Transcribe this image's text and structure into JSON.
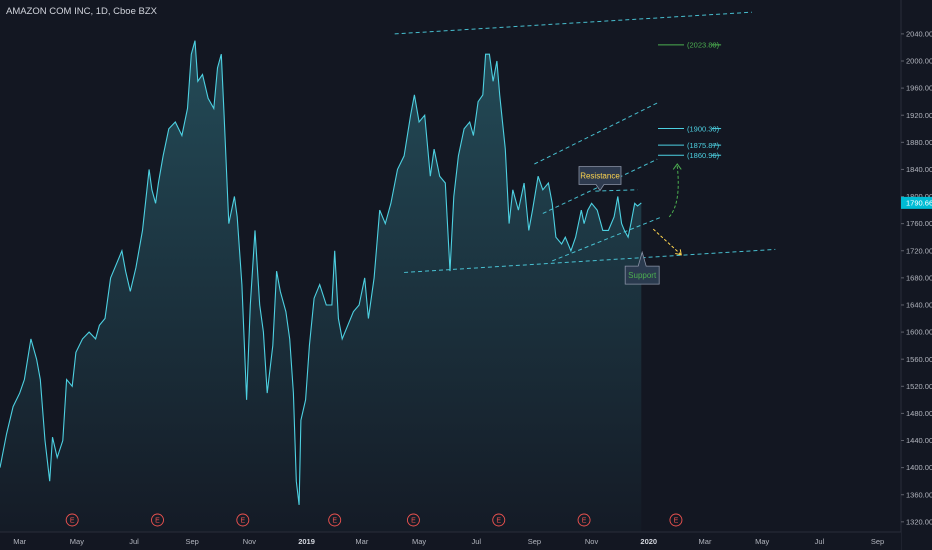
{
  "header": {
    "title": "AMAZON COM INC, 1D, Cboe BZX"
  },
  "colors": {
    "background": "#131722",
    "line": "#4dd0e1",
    "trendline": "#4dd0e1",
    "level_label": "#4dd0e1",
    "target_label": "#4caf50",
    "support_text": "#4caf50",
    "resistance_text": "#ffd54f",
    "projection_up": "#4caf50",
    "projection_down": "#ffd54f",
    "earnings": "#ef5350",
    "price_badge": "#00bcd4"
  },
  "chart_data": {
    "type": "area",
    "y_axis": {
      "range": [
        1305,
        2090
      ],
      "ticks": [
        "1320.00",
        "1360.00",
        "1400.00",
        "1440.00",
        "1480.00",
        "1520.00",
        "1560.00",
        "1600.00",
        "1640.00",
        "1680.00",
        "1720.00",
        "1760.00",
        "1800.00",
        "1840.00",
        "1880.00",
        "1920.00",
        "1960.00",
        "2000.00",
        "2040.00"
      ],
      "tick_values": [
        1320,
        1360,
        1400,
        1440,
        1480,
        1520,
        1560,
        1600,
        1640,
        1680,
        1720,
        1760,
        1800,
        1840,
        1880,
        1920,
        1960,
        2000,
        2040
      ]
    },
    "x_axis": {
      "range": [
        "2018-02-08",
        "2020-09-25"
      ],
      "labels": [
        {
          "text": "Mar",
          "date": "2018-03-01",
          "bold": false
        },
        {
          "text": "May",
          "date": "2018-05-01",
          "bold": false
        },
        {
          "text": "Jul",
          "date": "2018-07-01",
          "bold": false
        },
        {
          "text": "Sep",
          "date": "2018-09-01",
          "bold": false
        },
        {
          "text": "Nov",
          "date": "2018-11-01",
          "bold": false
        },
        {
          "text": "2019",
          "date": "2019-01-01",
          "bold": true
        },
        {
          "text": "Mar",
          "date": "2019-03-01",
          "bold": false
        },
        {
          "text": "May",
          "date": "2019-05-01",
          "bold": false
        },
        {
          "text": "Jul",
          "date": "2019-07-01",
          "bold": false
        },
        {
          "text": "Sep",
          "date": "2019-09-01",
          "bold": false
        },
        {
          "text": "Nov",
          "date": "2019-11-01",
          "bold": false
        },
        {
          "text": "2020",
          "date": "2020-01-01",
          "bold": true
        },
        {
          "text": "Mar",
          "date": "2020-03-01",
          "bold": false
        },
        {
          "text": "May",
          "date": "2020-05-01",
          "bold": false
        },
        {
          "text": "Jul",
          "date": "2020-07-01",
          "bold": false
        },
        {
          "text": "Sep",
          "date": "2020-09-01",
          "bold": false
        }
      ]
    },
    "series": [
      {
        "points": [
          [
            "2018-02-08",
            1400
          ],
          [
            "2018-02-15",
            1450
          ],
          [
            "2018-02-22",
            1490
          ],
          [
            "2018-03-01",
            1510
          ],
          [
            "2018-03-06",
            1530
          ],
          [
            "2018-03-13",
            1590
          ],
          [
            "2018-03-19",
            1560
          ],
          [
            "2018-03-23",
            1530
          ],
          [
            "2018-03-28",
            1440
          ],
          [
            "2018-04-02",
            1380
          ],
          [
            "2018-04-05",
            1445
          ],
          [
            "2018-04-10",
            1415
          ],
          [
            "2018-04-16",
            1440
          ],
          [
            "2018-04-20",
            1530
          ],
          [
            "2018-04-26",
            1520
          ],
          [
            "2018-04-30",
            1570
          ],
          [
            "2018-05-07",
            1590
          ],
          [
            "2018-05-14",
            1600
          ],
          [
            "2018-05-21",
            1590
          ],
          [
            "2018-05-25",
            1610
          ],
          [
            "2018-05-31",
            1620
          ],
          [
            "2018-06-06",
            1680
          ],
          [
            "2018-06-12",
            1700
          ],
          [
            "2018-06-18",
            1720
          ],
          [
            "2018-06-22",
            1690
          ],
          [
            "2018-06-27",
            1660
          ],
          [
            "2018-07-03",
            1695
          ],
          [
            "2018-07-10",
            1750
          ],
          [
            "2018-07-17",
            1840
          ],
          [
            "2018-07-20",
            1810
          ],
          [
            "2018-07-24",
            1790
          ],
          [
            "2018-07-27",
            1820
          ],
          [
            "2018-08-01",
            1860
          ],
          [
            "2018-08-07",
            1900
          ],
          [
            "2018-08-14",
            1910
          ],
          [
            "2018-08-21",
            1890
          ],
          [
            "2018-08-27",
            1930
          ],
          [
            "2018-08-31",
            2010
          ],
          [
            "2018-09-04",
            2030
          ],
          [
            "2018-09-07",
            1970
          ],
          [
            "2018-09-12",
            1980
          ],
          [
            "2018-09-18",
            1945
          ],
          [
            "2018-09-24",
            1930
          ],
          [
            "2018-09-28",
            1990
          ],
          [
            "2018-10-02",
            2010
          ],
          [
            "2018-10-05",
            1920
          ],
          [
            "2018-10-10",
            1760
          ],
          [
            "2018-10-16",
            1800
          ],
          [
            "2018-10-19",
            1770
          ],
          [
            "2018-10-24",
            1670
          ],
          [
            "2018-10-29",
            1500
          ],
          [
            "2018-11-02",
            1640
          ],
          [
            "2018-11-07",
            1750
          ],
          [
            "2018-11-12",
            1640
          ],
          [
            "2018-11-16",
            1600
          ],
          [
            "2018-11-20",
            1510
          ],
          [
            "2018-11-26",
            1580
          ],
          [
            "2018-11-30",
            1690
          ],
          [
            "2018-12-04",
            1660
          ],
          [
            "2018-12-10",
            1630
          ],
          [
            "2018-12-14",
            1590
          ],
          [
            "2018-12-18",
            1510
          ],
          [
            "2018-12-21",
            1380
          ],
          [
            "2018-12-24",
            1345
          ],
          [
            "2018-12-26",
            1470
          ],
          [
            "2018-12-31",
            1500
          ],
          [
            "2019-01-04",
            1580
          ],
          [
            "2019-01-09",
            1650
          ],
          [
            "2019-01-15",
            1670
          ],
          [
            "2019-01-22",
            1640
          ],
          [
            "2019-01-28",
            1640
          ],
          [
            "2019-01-31",
            1720
          ],
          [
            "2019-02-04",
            1620
          ],
          [
            "2019-02-08",
            1590
          ],
          [
            "2019-02-14",
            1610
          ],
          [
            "2019-02-20",
            1630
          ],
          [
            "2019-02-26",
            1640
          ],
          [
            "2019-03-04",
            1680
          ],
          [
            "2019-03-08",
            1620
          ],
          [
            "2019-03-14",
            1680
          ],
          [
            "2019-03-20",
            1780
          ],
          [
            "2019-03-26",
            1760
          ],
          [
            "2019-04-01",
            1790
          ],
          [
            "2019-04-08",
            1840
          ],
          [
            "2019-04-15",
            1860
          ],
          [
            "2019-04-22",
            1920
          ],
          [
            "2019-04-26",
            1950
          ],
          [
            "2019-05-01",
            1910
          ],
          [
            "2019-05-07",
            1920
          ],
          [
            "2019-05-13",
            1830
          ],
          [
            "2019-05-17",
            1870
          ],
          [
            "2019-05-23",
            1830
          ],
          [
            "2019-05-29",
            1820
          ],
          [
            "2019-06-03",
            1690
          ],
          [
            "2019-06-07",
            1800
          ],
          [
            "2019-06-12",
            1860
          ],
          [
            "2019-06-18",
            1900
          ],
          [
            "2019-06-24",
            1910
          ],
          [
            "2019-06-28",
            1890
          ],
          [
            "2019-07-03",
            1940
          ],
          [
            "2019-07-08",
            1950
          ],
          [
            "2019-07-11",
            2010
          ],
          [
            "2019-07-15",
            2010
          ],
          [
            "2019-07-19",
            1970
          ],
          [
            "2019-07-23",
            2000
          ],
          [
            "2019-07-26",
            1950
          ],
          [
            "2019-08-01",
            1870
          ],
          [
            "2019-08-05",
            1760
          ],
          [
            "2019-08-09",
            1810
          ],
          [
            "2019-08-15",
            1780
          ],
          [
            "2019-08-21",
            1820
          ],
          [
            "2019-08-26",
            1750
          ],
          [
            "2019-08-30",
            1780
          ],
          [
            "2019-09-05",
            1830
          ],
          [
            "2019-09-10",
            1810
          ],
          [
            "2019-09-16",
            1820
          ],
          [
            "2019-09-20",
            1790
          ],
          [
            "2019-09-24",
            1740
          ],
          [
            "2019-09-30",
            1730
          ],
          [
            "2019-10-04",
            1740
          ],
          [
            "2019-10-10",
            1720
          ],
          [
            "2019-10-15",
            1740
          ],
          [
            "2019-10-21",
            1780
          ],
          [
            "2019-10-24",
            1760
          ],
          [
            "2019-10-28",
            1780
          ],
          [
            "2019-11-01",
            1790
          ],
          [
            "2019-11-07",
            1780
          ],
          [
            "2019-11-13",
            1750
          ],
          [
            "2019-11-19",
            1750
          ],
          [
            "2019-11-25",
            1770
          ],
          [
            "2019-11-29",
            1800
          ],
          [
            "2019-12-03",
            1760
          ],
          [
            "2019-12-06",
            1750
          ],
          [
            "2019-12-10",
            1740
          ],
          [
            "2019-12-13",
            1760
          ],
          [
            "2019-12-17",
            1790
          ],
          [
            "2019-12-20",
            1786
          ],
          [
            "2019-12-24",
            1790.66
          ]
        ]
      }
    ],
    "last_price": {
      "text": "1790.66",
      "value": 1790.66
    },
    "level_labels": [
      {
        "text": "(2023.80)",
        "value": 2023.8,
        "color": "#4caf50"
      },
      {
        "text": "(1900.30)",
        "value": 1900.3,
        "color": "#4dd0e1"
      },
      {
        "text": "(1875.87)",
        "value": 1875.87,
        "color": "#4dd0e1"
      },
      {
        "text": "(1860.96)",
        "value": 1860.96,
        "color": "#4dd0e1"
      }
    ],
    "trendlines": [
      {
        "name": "top-channel",
        "from": [
          "2019-04-05",
          2040
        ],
        "to": [
          "2020-04-20",
          2072
        ]
      },
      {
        "name": "bottom-support",
        "from": [
          "2019-04-15",
          1688
        ],
        "to": [
          "2020-05-15",
          1722
        ]
      },
      {
        "name": "upper-channel-1",
        "from": [
          "2019-09-01",
          1848
        ],
        "to": [
          "2020-01-10",
          1938
        ]
      },
      {
        "name": "upper-channel-2",
        "from": [
          "2019-09-10",
          1775
        ],
        "to": [
          "2020-01-10",
          1855
        ]
      },
      {
        "name": "inner-lower",
        "from": [
          "2019-09-20",
          1705
        ],
        "to": [
          "2020-01-15",
          1770
        ]
      },
      {
        "name": "resistance-line",
        "from": [
          "2019-11-05",
          1808
        ],
        "to": [
          "2019-12-20",
          1810
        ]
      }
    ],
    "annotations": [
      {
        "text": "Resistance",
        "date": "2019-11-10",
        "value": 1831,
        "role": "resistance"
      },
      {
        "text": "Support",
        "date": "2019-12-25",
        "value": 1684,
        "role": "support"
      }
    ],
    "earnings_markers": {
      "label": "E",
      "dates": [
        "2018-04-26",
        "2018-07-26",
        "2018-10-25",
        "2019-01-31",
        "2019-04-25",
        "2019-07-25",
        "2019-10-24",
        "2020-01-30"
      ]
    },
    "grid": false
  }
}
